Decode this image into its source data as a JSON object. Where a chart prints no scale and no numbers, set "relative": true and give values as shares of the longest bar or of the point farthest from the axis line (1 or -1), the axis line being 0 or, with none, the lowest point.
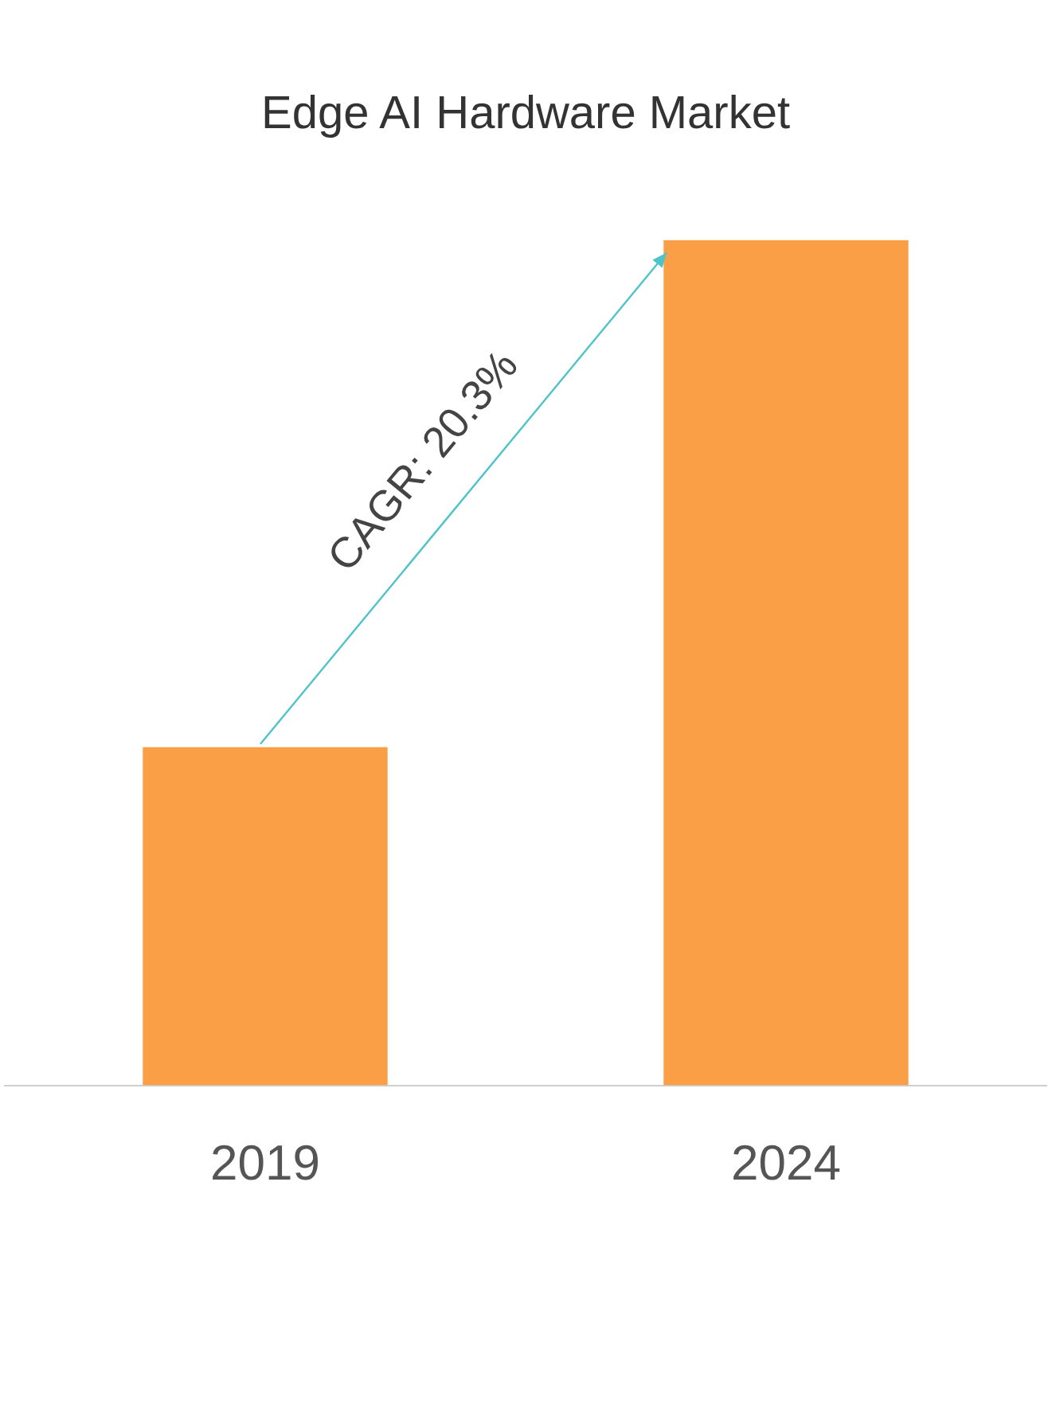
{
  "chart_data": {
    "type": "bar",
    "title": "Edge AI Hardware Market",
    "categories": [
      "2019",
      "2024"
    ],
    "values": [
      0.4,
      1
    ],
    "color": "#fb9f47",
    "relative": true,
    "annotations": [
      "CAGR: 20.3%"
    ],
    "legend": false,
    "grid": false
  }
}
